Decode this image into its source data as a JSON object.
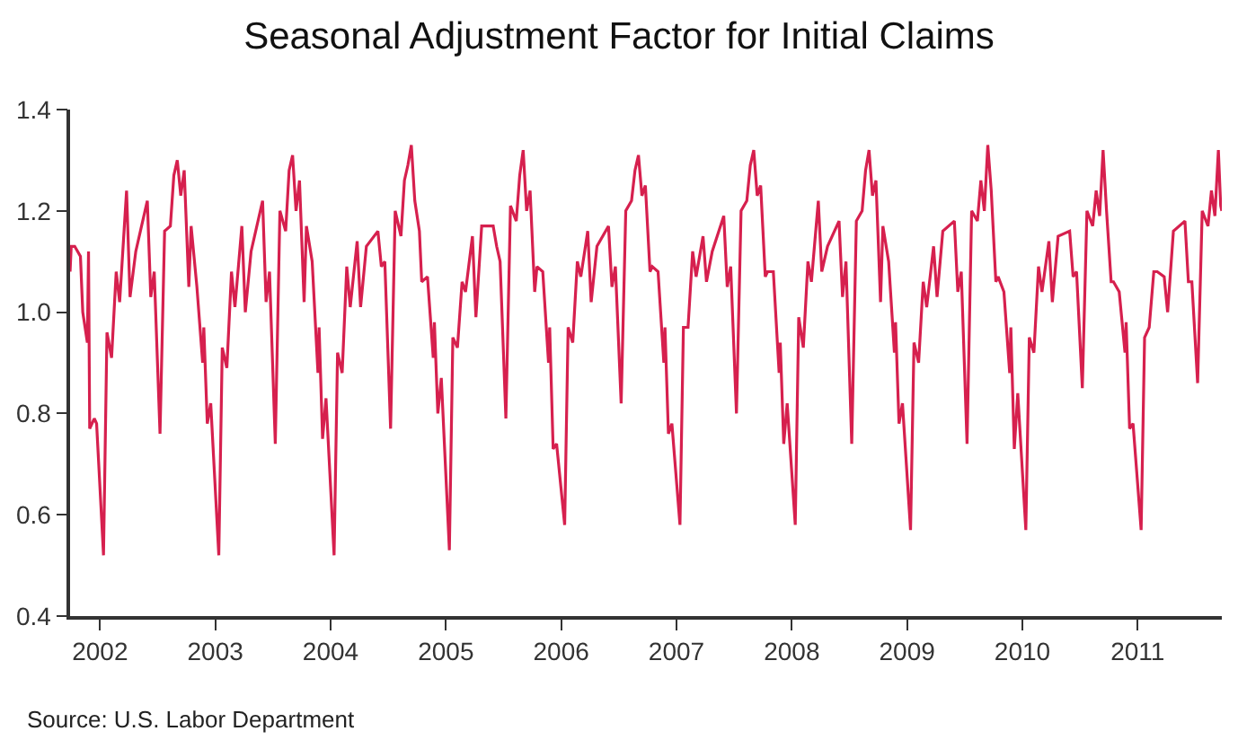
{
  "chart_data": {
    "type": "line",
    "title": "Seasonal Adjustment Factor for Initial Claims",
    "annotations": [
      "Source: U.S. Labor Department"
    ],
    "xlim": [
      2001.74,
      2011.73
    ],
    "xticks": [
      2002,
      2003,
      2004,
      2005,
      2006,
      2007,
      2008,
      2009,
      2010,
      2011
    ],
    "ylim": [
      0.4,
      1.4
    ],
    "yticks": [
      0.4,
      0.6,
      0.8,
      {
        "value": 1,
        "label": "1.0"
      },
      1.2,
      1.4
    ],
    "marker": "none",
    "line_style": "solid",
    "series": [
      {
        "color": "#d6204e",
        "x": [
          2001.74,
          2001.75,
          2001.78,
          2001.83,
          2001.85,
          2001.87,
          2001.89,
          2001.9,
          2001.91,
          2001.95,
          2001.97,
          2002.03,
          2002.06,
          2002.1,
          2002.14,
          2002.17,
          2002.23,
          2002.26,
          2002.31,
          2002.41,
          2002.44,
          2002.47,
          2002.52,
          2002.56,
          2002.61,
          2002.64,
          2002.67,
          2002.7,
          2002.73,
          2002.77,
          2002.79,
          2002.84,
          2002.89,
          2002.9,
          2002.93,
          2002.96,
          2003.03,
          2003.06,
          2003.1,
          2003.14,
          2003.17,
          2003.23,
          2003.26,
          2003.31,
          2003.41,
          2003.44,
          2003.47,
          2003.52,
          2003.56,
          2003.61,
          2003.64,
          2003.67,
          2003.7,
          2003.73,
          2003.77,
          2003.79,
          2003.84,
          2003.89,
          2003.9,
          2003.93,
          2003.96,
          2004.03,
          2004.06,
          2004.1,
          2004.14,
          2004.17,
          2004.23,
          2004.26,
          2004.31,
          2004.41,
          2004.44,
          2004.47,
          2004.52,
          2004.56,
          2004.61,
          2004.64,
          2004.67,
          2004.7,
          2004.73,
          2004.77,
          2004.79,
          2004.84,
          2004.89,
          2004.9,
          2004.93,
          2004.96,
          2005.03,
          2005.06,
          2005.1,
          2005.14,
          2005.17,
          2005.23,
          2005.26,
          2005.31,
          2005.41,
          2005.44,
          2005.47,
          2005.52,
          2005.56,
          2005.61,
          2005.64,
          2005.67,
          2005.7,
          2005.73,
          2005.77,
          2005.79,
          2005.84,
          2005.89,
          2005.9,
          2005.93,
          2005.96,
          2006.03,
          2006.06,
          2006.1,
          2006.14,
          2006.17,
          2006.23,
          2006.26,
          2006.31,
          2006.41,
          2006.44,
          2006.47,
          2006.52,
          2006.56,
          2006.61,
          2006.64,
          2006.67,
          2006.7,
          2006.73,
          2006.77,
          2006.79,
          2006.84,
          2006.89,
          2006.9,
          2006.93,
          2006.96,
          2007.03,
          2007.06,
          2007.1,
          2007.14,
          2007.17,
          2007.23,
          2007.26,
          2007.31,
          2007.41,
          2007.44,
          2007.47,
          2007.52,
          2007.56,
          2007.61,
          2007.64,
          2007.67,
          2007.7,
          2007.73,
          2007.77,
          2007.79,
          2007.84,
          2007.89,
          2007.9,
          2007.93,
          2007.96,
          2008.03,
          2008.06,
          2008.1,
          2008.14,
          2008.17,
          2008.23,
          2008.26,
          2008.31,
          2008.41,
          2008.44,
          2008.47,
          2008.52,
          2008.56,
          2008.61,
          2008.64,
          2008.67,
          2008.7,
          2008.73,
          2008.77,
          2008.79,
          2008.84,
          2008.89,
          2008.9,
          2008.93,
          2008.96,
          2009.03,
          2009.06,
          2009.1,
          2009.14,
          2009.17,
          2009.23,
          2009.26,
          2009.31,
          2009.41,
          2009.44,
          2009.47,
          2009.52,
          2009.56,
          2009.61,
          2009.64,
          2009.67,
          2009.7,
          2009.73,
          2009.77,
          2009.79,
          2009.84,
          2009.89,
          2009.9,
          2009.93,
          2009.96,
          2010.03,
          2010.06,
          2010.1,
          2010.14,
          2010.17,
          2010.23,
          2010.26,
          2010.31,
          2010.41,
          2010.44,
          2010.47,
          2010.52,
          2010.56,
          2010.61,
          2010.64,
          2010.67,
          2010.7,
          2010.73,
          2010.77,
          2010.79,
          2010.84,
          2010.89,
          2010.9,
          2010.93,
          2010.96,
          2011.03,
          2011.06,
          2011.1,
          2011.14,
          2011.17,
          2011.23,
          2011.26,
          2011.31,
          2011.41,
          2011.44,
          2011.47,
          2011.52,
          2011.56,
          2011.61,
          2011.64,
          2011.67,
          2011.7,
          2011.72,
          2011.73
        ],
        "values": [
          1.08,
          1.13,
          1.13,
          1.11,
          1.0,
          0.97,
          0.94,
          1.12,
          0.77,
          0.79,
          0.78,
          0.52,
          0.96,
          0.91,
          1.08,
          1.02,
          1.24,
          1.03,
          1.12,
          1.22,
          1.03,
          1.08,
          0.76,
          1.16,
          1.17,
          1.27,
          1.3,
          1.23,
          1.28,
          1.05,
          1.17,
          1.05,
          0.9,
          0.97,
          0.78,
          0.82,
          0.52,
          0.93,
          0.89,
          1.08,
          1.01,
          1.17,
          1.0,
          1.12,
          1.22,
          1.02,
          1.08,
          0.74,
          1.2,
          1.16,
          1.28,
          1.31,
          1.2,
          1.26,
          1.02,
          1.17,
          1.1,
          0.88,
          0.97,
          0.75,
          0.83,
          0.52,
          0.92,
          0.88,
          1.09,
          1.01,
          1.14,
          1.01,
          1.13,
          1.16,
          1.09,
          1.1,
          0.77,
          1.2,
          1.15,
          1.26,
          1.29,
          1.33,
          1.22,
          1.16,
          1.06,
          1.07,
          0.91,
          0.98,
          0.8,
          0.87,
          0.53,
          0.95,
          0.93,
          1.06,
          1.04,
          1.15,
          0.99,
          1.17,
          1.17,
          1.13,
          1.1,
          0.79,
          1.21,
          1.18,
          1.27,
          1.32,
          1.2,
          1.24,
          1.04,
          1.09,
          1.08,
          0.9,
          0.97,
          0.73,
          0.74,
          0.58,
          0.97,
          0.94,
          1.1,
          1.07,
          1.16,
          1.02,
          1.13,
          1.17,
          1.05,
          1.09,
          0.82,
          1.2,
          1.22,
          1.28,
          1.31,
          1.23,
          1.25,
          1.08,
          1.09,
          1.08,
          0.9,
          0.97,
          0.76,
          0.78,
          0.58,
          0.97,
          0.97,
          1.12,
          1.07,
          1.15,
          1.06,
          1.12,
          1.19,
          1.05,
          1.09,
          0.8,
          1.2,
          1.22,
          1.29,
          1.32,
          1.23,
          1.25,
          1.07,
          1.08,
          1.08,
          0.88,
          0.94,
          0.74,
          0.82,
          0.58,
          0.99,
          0.93,
          1.1,
          1.06,
          1.22,
          1.08,
          1.13,
          1.18,
          1.03,
          1.1,
          0.74,
          1.18,
          1.2,
          1.28,
          1.32,
          1.23,
          1.26,
          1.02,
          1.17,
          1.1,
          0.92,
          0.98,
          0.78,
          0.82,
          0.57,
          0.94,
          0.9,
          1.06,
          1.01,
          1.13,
          1.03,
          1.16,
          1.18,
          1.04,
          1.08,
          0.74,
          1.2,
          1.18,
          1.26,
          1.2,
          1.33,
          1.24,
          1.06,
          1.07,
          1.04,
          0.88,
          0.97,
          0.73,
          0.84,
          0.57,
          0.95,
          0.92,
          1.09,
          1.04,
          1.14,
          1.02,
          1.15,
          1.16,
          1.07,
          1.08,
          0.85,
          1.2,
          1.17,
          1.24,
          1.19,
          1.32,
          1.2,
          1.06,
          1.06,
          1.04,
          0.92,
          0.98,
          0.77,
          0.78,
          0.57,
          0.95,
          0.97,
          1.08,
          1.08,
          1.07,
          1.0,
          1.16,
          1.18,
          1.06,
          1.06,
          0.86,
          1.2,
          1.17,
          1.24,
          1.19,
          1.32,
          1.21,
          1.2
        ]
      }
    ]
  }
}
